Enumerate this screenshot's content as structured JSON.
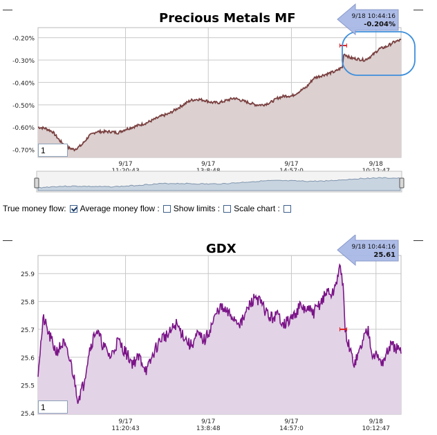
{
  "colors": {
    "mf_fill": "#dcd0d0",
    "mf_line": "#7a4040",
    "gdx_fill": "#e2d3e6",
    "gdx_line": "#7b1488",
    "grid": "#c8c8c8",
    "callout": "#a9b9e6",
    "highlight": "#3d8fdc"
  },
  "top_chart": {
    "title": "Precious Metals MF",
    "zoom_value": "1",
    "callout": {
      "date": "9/18 10:44:16",
      "value": "-0.204%"
    }
  },
  "bottom_chart": {
    "title": "GDX",
    "zoom_value": "1",
    "callout": {
      "date": "9/18 10:44:16",
      "value": "25.61"
    }
  },
  "options": {
    "true_money_flow": "True money flow:",
    "average_money_flow": "Average money flow :",
    "show_limits": "Show limits :",
    "scale_chart": "Scale chart :"
  },
  "chart_data": [
    {
      "type": "line",
      "title": "Precious Metals MF",
      "xlabel": "",
      "ylabel": "",
      "x_ticks": [
        {
          "date": "9/17",
          "time": "11:20:43"
        },
        {
          "date": "9/17",
          "time": "13:8:48"
        },
        {
          "date": "9/17",
          "time": "14:57:0"
        },
        {
          "date": "9/18",
          "time": "10:12:47"
        }
      ],
      "y_ticks": [
        "-0.20%",
        "-0.30%",
        "-0.40%",
        "-0.50%",
        "-0.60%",
        "-0.70%"
      ],
      "ylim": [
        -0.735,
        -0.155
      ],
      "grid": true,
      "series": [
        {
          "name": "Precious Metals MF",
          "x": [
            0,
            0.02,
            0.04,
            0.06,
            0.08,
            0.1,
            0.12,
            0.14,
            0.16,
            0.18,
            0.2,
            0.22,
            0.24,
            0.26,
            0.28,
            0.3,
            0.32,
            0.34,
            0.36,
            0.38,
            0.4,
            0.42,
            0.44,
            0.46,
            0.48,
            0.5,
            0.52,
            0.54,
            0.56,
            0.58,
            0.6,
            0.62,
            0.64,
            0.66,
            0.68,
            0.7,
            0.72,
            0.74,
            0.76,
            0.78,
            0.8,
            0.82,
            0.84,
            0.8408,
            0.86,
            0.88,
            0.9,
            0.92,
            0.94,
            0.96,
            0.98,
            1.0
          ],
          "values": [
            -0.6,
            -0.605,
            -0.62,
            -0.66,
            -0.69,
            -0.7,
            -0.68,
            -0.64,
            -0.62,
            -0.62,
            -0.62,
            -0.625,
            -0.61,
            -0.6,
            -0.59,
            -0.58,
            -0.565,
            -0.55,
            -0.54,
            -0.52,
            -0.5,
            -0.48,
            -0.475,
            -0.48,
            -0.49,
            -0.49,
            -0.48,
            -0.47,
            -0.48,
            -0.49,
            -0.5,
            -0.5,
            -0.49,
            -0.47,
            -0.46,
            -0.46,
            -0.44,
            -0.42,
            -0.38,
            -0.37,
            -0.36,
            -0.35,
            -0.33,
            -0.27,
            -0.29,
            -0.295,
            -0.3,
            -0.28,
            -0.25,
            -0.24,
            -0.22,
            -0.21
          ]
        }
      ]
    },
    {
      "type": "area",
      "title": "GDX",
      "xlabel": "",
      "ylabel": "",
      "x_ticks": [
        {
          "date": "9/17",
          "time": "11:20:43"
        },
        {
          "date": "9/17",
          "time": "13:8:48"
        },
        {
          "date": "9/17",
          "time": "14:57:0"
        },
        {
          "date": "9/18",
          "time": "10:12:47"
        }
      ],
      "y_ticks": [
        "25.9",
        "25.8",
        "25.7",
        "25.6",
        "25.5",
        "25.4"
      ],
      "ylim": [
        25.395,
        25.965
      ],
      "grid": true,
      "series": [
        {
          "name": "GDX",
          "x": [
            0,
            0.015,
            0.03,
            0.05,
            0.07,
            0.09,
            0.1,
            0.11,
            0.125,
            0.14,
            0.16,
            0.18,
            0.2,
            0.22,
            0.24,
            0.26,
            0.28,
            0.3,
            0.32,
            0.34,
            0.36,
            0.38,
            0.4,
            0.42,
            0.44,
            0.46,
            0.48,
            0.5,
            0.52,
            0.54,
            0.56,
            0.58,
            0.6,
            0.62,
            0.64,
            0.66,
            0.68,
            0.7,
            0.72,
            0.74,
            0.76,
            0.78,
            0.8,
            0.81,
            0.82,
            0.83,
            0.8408,
            0.845,
            0.86,
            0.87,
            0.88,
            0.9,
            0.91,
            0.92,
            0.935,
            0.95,
            0.97,
            0.99,
            1.0
          ],
          "values": [
            25.55,
            25.74,
            25.68,
            25.62,
            25.65,
            25.58,
            25.52,
            25.45,
            25.5,
            25.62,
            25.7,
            25.64,
            25.6,
            25.66,
            25.62,
            25.58,
            25.6,
            25.55,
            25.62,
            25.67,
            25.68,
            25.72,
            25.68,
            25.64,
            25.68,
            25.66,
            25.72,
            25.78,
            25.76,
            25.74,
            25.72,
            25.78,
            25.82,
            25.78,
            25.74,
            25.75,
            25.72,
            25.74,
            25.78,
            25.77,
            25.76,
            25.8,
            25.84,
            25.82,
            25.86,
            25.92,
            25.87,
            25.7,
            25.62,
            25.58,
            25.6,
            25.68,
            25.7,
            25.62,
            25.6,
            25.58,
            25.64,
            25.63,
            25.61
          ]
        }
      ]
    }
  ]
}
